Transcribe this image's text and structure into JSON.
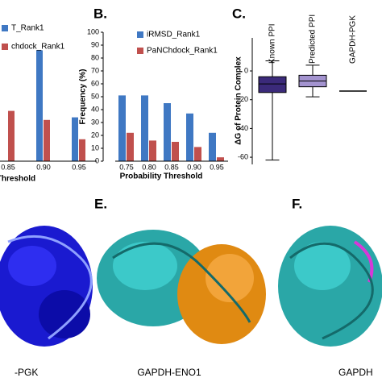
{
  "chart_data": [
    {
      "type": "bar",
      "xlabel": "Threshold",
      "categories": [
        "0.85",
        "0.90",
        "0.95"
      ],
      "ylim": [
        0,
        100
      ],
      "series": [
        {
          "name": "T_Rank1",
          "color": "#3f78c3",
          "values": [
            null,
            86,
            34
          ]
        },
        {
          "name": "chdock_Rank1",
          "color": "#c0504d",
          "values": [
            39,
            32,
            17
          ]
        }
      ]
    },
    {
      "type": "bar",
      "panel": "B.",
      "ylabel": "Frequency (%)",
      "xlabel": "Probability Threshold",
      "categories": [
        "0.75",
        "0.80",
        "0.85",
        "0.90",
        "0.95"
      ],
      "ylim": [
        0,
        100
      ],
      "yticks": [
        0,
        10,
        20,
        30,
        40,
        50,
        60,
        70,
        80,
        90,
        100
      ],
      "series": [
        {
          "name": "iRMSD_Rank1",
          "color": "#3f78c3",
          "values": [
            51,
            51,
            45,
            37,
            22
          ]
        },
        {
          "name": "PaNChdock_Rank1",
          "color": "#c0504d",
          "values": [
            22,
            16,
            15,
            11,
            3
          ]
        }
      ]
    },
    {
      "type": "box",
      "panel": "C.",
      "ylabel": "ΔG of Protein Complex",
      "categories": [
        "Known PPI",
        "Predicted PPI",
        "GAPDH-PGK"
      ],
      "ylim": [
        -65,
        23
      ],
      "yticks": [
        0,
        -20,
        -40,
        -60
      ],
      "colors": [
        "#3b2a7a",
        "#a393cf",
        "#000000"
      ],
      "boxes": [
        {
          "min": -62,
          "q1": -15,
          "median": -9,
          "q3": -4,
          "max": 7
        },
        {
          "min": -18,
          "q1": -11,
          "median": -7,
          "q3": -3,
          "max": 4
        },
        {
          "median": -14
        }
      ]
    }
  ],
  "structures": [
    {
      "caption": "-PGK"
    },
    {
      "panel": "E.",
      "caption": "GAPDH-ENO1"
    },
    {
      "panel": "F.",
      "caption": "GAPDH"
    }
  ]
}
